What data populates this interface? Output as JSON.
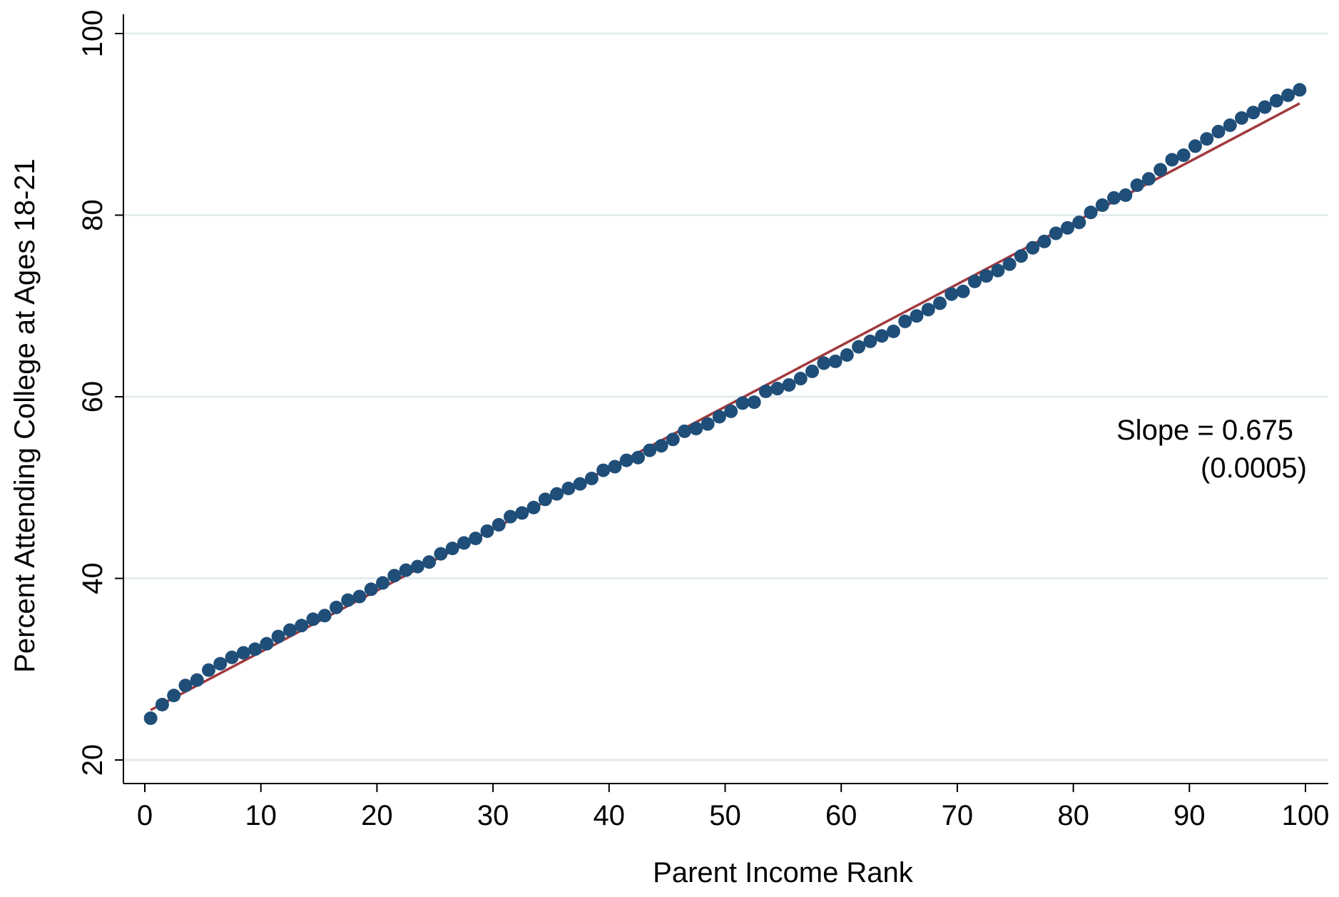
{
  "chart_data": {
    "type": "scatter",
    "title": "",
    "xlabel": "Parent Income Rank",
    "ylabel": "Percent Attending College at Ages 18-21",
    "xlim": [
      0,
      100
    ],
    "ylim": [
      20,
      100
    ],
    "x_ticks": [
      "0",
      "10",
      "20",
      "30",
      "40",
      "50",
      "60",
      "70",
      "80",
      "90",
      "100"
    ],
    "y_ticks": [
      "20",
      "40",
      "60",
      "80",
      "100"
    ],
    "grid": "horizontal",
    "legend": "none",
    "annotation": {
      "line1": "Slope = 0.675",
      "line2": "(0.0005)"
    },
    "colors": {
      "points": "#1f4e79",
      "fit_line": "#a03a3e",
      "grid": "#e4ecef",
      "axis": "#000000"
    },
    "series": [
      {
        "x": [
          0.5,
          1.5,
          2.5,
          3.5,
          4.5,
          5.5,
          6.5,
          7.5,
          8.5,
          9.5,
          10.5,
          11.5,
          12.5,
          13.5,
          14.5,
          15.5,
          16.5,
          17.5,
          18.5,
          19.5,
          20.5,
          21.5,
          22.5,
          23.5,
          24.5,
          25.5,
          26.5,
          27.5,
          28.5,
          29.5,
          30.5,
          31.5,
          32.5,
          33.5,
          34.5,
          35.5,
          36.5,
          37.5,
          38.5,
          39.5,
          40.5,
          41.5,
          42.5,
          43.5,
          44.5,
          45.5,
          46.5,
          47.5,
          48.5,
          49.5,
          50.5,
          51.5,
          52.5,
          53.5,
          54.5,
          55.5,
          56.5,
          57.5,
          58.5,
          59.5,
          60.5,
          61.5,
          62.5,
          63.5,
          64.5,
          65.5,
          66.5,
          67.5,
          68.5,
          69.5,
          70.5,
          71.5,
          72.5,
          73.5,
          74.5,
          75.5,
          76.5,
          77.5,
          78.5,
          79.5,
          80.5,
          81.5,
          82.5,
          83.5,
          84.5,
          85.5,
          86.5,
          87.5,
          88.5,
          89.5,
          90.5,
          91.5,
          92.5,
          93.5,
          94.5,
          95.5,
          96.5,
          97.5,
          98.5,
          99.5
        ],
        "y": [
          24.6,
          26.1,
          27.1,
          28.2,
          28.8,
          29.9,
          30.6,
          31.3,
          31.8,
          32.2,
          32.8,
          33.6,
          34.3,
          34.8,
          35.5,
          35.9,
          36.8,
          37.6,
          38.0,
          38.8,
          39.5,
          40.3,
          40.9,
          41.3,
          41.8,
          42.7,
          43.3,
          43.9,
          44.4,
          45.2,
          45.9,
          46.8,
          47.2,
          47.8,
          48.7,
          49.3,
          49.9,
          50.4,
          51.0,
          51.9,
          52.3,
          53.0,
          53.3,
          54.1,
          54.6,
          55.3,
          56.2,
          56.5,
          57.0,
          57.8,
          58.4,
          59.3,
          59.4,
          60.6,
          60.9,
          61.3,
          62.0,
          62.8,
          63.7,
          63.9,
          64.6,
          65.5,
          66.1,
          66.7,
          67.2,
          68.3,
          68.9,
          69.6,
          70.3,
          71.3,
          71.6,
          72.7,
          73.3,
          73.9,
          74.6,
          75.5,
          76.4,
          77.1,
          78.0,
          78.6,
          79.2,
          80.3,
          81.1,
          81.9,
          82.2,
          83.3,
          84.0,
          85.0,
          86.1,
          86.6,
          87.6,
          88.4,
          89.2,
          89.9,
          90.7,
          91.3,
          91.9,
          92.6,
          93.2,
          93.8
        ]
      }
    ],
    "fit_line": {
      "x": [
        0.5,
        99.5
      ],
      "y": [
        25.5,
        92.3
      ]
    }
  }
}
